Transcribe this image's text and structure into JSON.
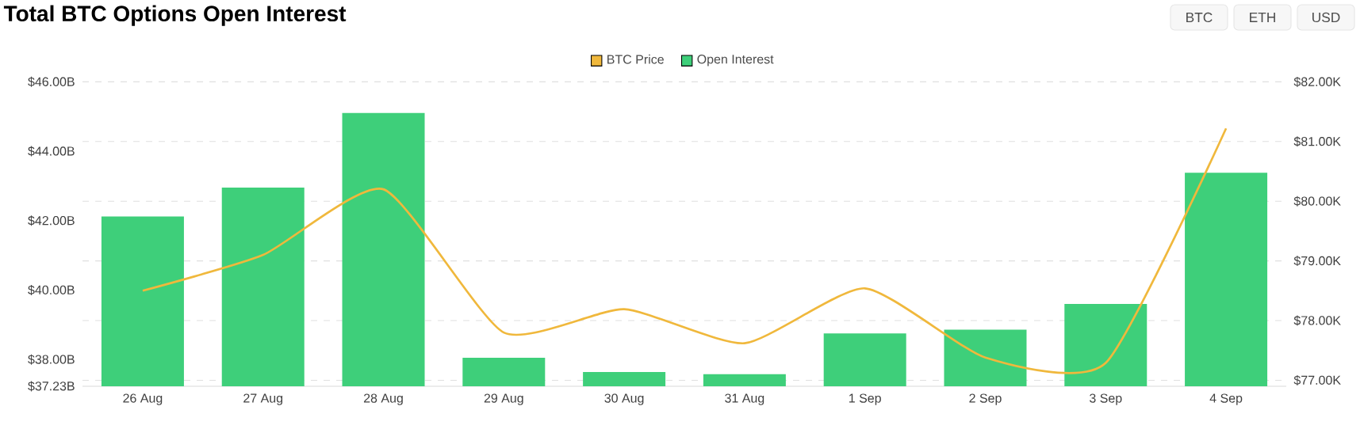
{
  "chart_data": {
    "type": "bar",
    "title": "Total BTC Options Open Interest",
    "categories": [
      "26 Aug",
      "27 Aug",
      "28 Aug",
      "29 Aug",
      "30 Aug",
      "31 Aug",
      "1 Sep",
      "2 Sep",
      "3 Sep",
      "4 Sep"
    ],
    "series": [
      {
        "name": "BTC Price",
        "type": "line",
        "axis": "y2",
        "color": "#f0b83c",
        "values": [
          78.5,
          79.1,
          80.2,
          77.8,
          78.19,
          77.62,
          78.54,
          77.38,
          77.29,
          81.22
        ]
      },
      {
        "name": "Open Interest",
        "color": "#3ecf7a",
        "values": [
          42.12,
          42.95,
          45.1,
          38.05,
          37.64,
          37.58,
          38.75,
          38.86,
          39.6,
          43.38
        ]
      }
    ],
    "ylim": [
      37.23,
      46
    ],
    "yticks": [
      {
        "value": 37.23,
        "label": "$37.23B"
      },
      {
        "value": 38,
        "label": "$38.00B"
      },
      {
        "value": 40,
        "label": "$40.00B"
      },
      {
        "value": 42,
        "label": "$42.00B"
      },
      {
        "value": 44,
        "label": "$44.00B"
      },
      {
        "value": 46,
        "label": "$46.00B"
      }
    ],
    "y2lim": [
      76.9,
      82
    ],
    "y2ticks": [
      {
        "value": 77,
        "label": "$77.00K"
      },
      {
        "value": 78,
        "label": "$78.00K"
      },
      {
        "value": 79,
        "label": "$79.00K"
      },
      {
        "value": 80,
        "label": "$80.00K"
      },
      {
        "value": 81,
        "label": "$81.00K"
      },
      {
        "value": 82,
        "label": "$82.00K"
      }
    ],
    "grid": "y",
    "legend": "top",
    "line_style": "solid",
    "annotations": [
      "BTC",
      "ETH",
      "USD"
    ]
  }
}
